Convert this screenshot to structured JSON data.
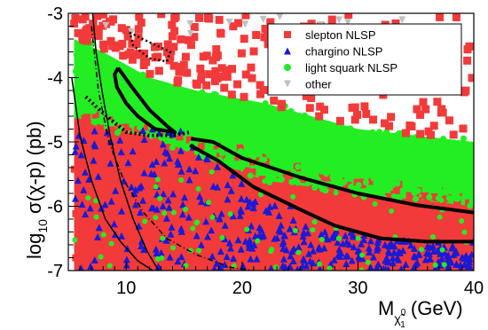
{
  "chart_data": {
    "type": "scatter",
    "title": "",
    "ylabel": {
      "prefix": "log",
      "subscript": "10",
      "rest": " σ(χ-p) (pb)"
    },
    "xlabel": {
      "prefix": "M",
      "subscript_glyph": "χ̃",
      "subscript_sup": "0",
      "subscript_sub": "1",
      "suffix": " (GeV)"
    },
    "xlim": [
      5,
      40
    ],
    "ylim": [
      -7,
      -3
    ],
    "xticks": [
      {
        "value": 10,
        "label": "10"
      },
      {
        "value": 20,
        "label": "20"
      },
      {
        "value": 30,
        "label": "30"
      },
      {
        "value": 40,
        "label": "40"
      }
    ],
    "yticks": [
      {
        "value": -3,
        "label": "-3"
      },
      {
        "value": -4,
        "label": "-4"
      },
      {
        "value": -5,
        "label": "-5"
      },
      {
        "value": -6,
        "label": "-6"
      },
      {
        "value": -7,
        "label": "-7"
      }
    ],
    "legend_position": "top-right",
    "series": [
      {
        "name": "slepton NLSP",
        "marker": "square",
        "color": "#f23a3a"
      },
      {
        "name": "chargino NLSP",
        "marker": "triangle",
        "color": "#1a1ad6"
      },
      {
        "name": "light squark NLSP",
        "marker": "circle",
        "color": "#22ee22"
      },
      {
        "name": "other",
        "marker": "triangle-down",
        "color": "#bfbfbf"
      }
    ],
    "regions": [
      {
        "series": "slepton NLSP",
        "shape": "band",
        "upper": [
          [
            5.5,
            -4.2
          ],
          [
            8,
            -4.6
          ],
          [
            12,
            -4.8
          ],
          [
            16,
            -4.9
          ],
          [
            22,
            -5.2
          ],
          [
            30,
            -5.6
          ],
          [
            40,
            -5.8
          ]
        ],
        "lower": [
          [
            5.5,
            -7
          ],
          [
            40,
            -7
          ]
        ]
      },
      {
        "series": "light squark NLSP",
        "shape": "band",
        "upper": [
          [
            5.5,
            -3.4
          ],
          [
            8,
            -3.6
          ],
          [
            12,
            -4.0
          ],
          [
            16,
            -4.2
          ],
          [
            22,
            -4.4
          ],
          [
            30,
            -4.8
          ],
          [
            40,
            -5.0
          ]
        ],
        "lower": [
          [
            5.5,
            -4.6
          ],
          [
            8,
            -4.8
          ],
          [
            12,
            -4.9
          ],
          [
            16,
            -5.2
          ],
          [
            22,
            -5.6
          ],
          [
            30,
            -5.8
          ],
          [
            40,
            -6.0
          ]
        ]
      }
    ],
    "curves": [
      {
        "style": "solid",
        "width": 4,
        "points": [
          [
            9.3,
            -3.85
          ],
          [
            10.5,
            -4.15
          ],
          [
            12,
            -4.5
          ],
          [
            13.5,
            -4.75
          ],
          [
            14.2,
            -4.85
          ],
          [
            12.5,
            -4.8
          ],
          [
            11,
            -4.6
          ],
          [
            10,
            -4.4
          ],
          [
            9.2,
            -4.15
          ],
          [
            9.0,
            -3.95
          ],
          [
            9.3,
            -3.85
          ]
        ]
      },
      {
        "style": "solid",
        "width": 4,
        "points": [
          [
            15.6,
            -4.95
          ],
          [
            17.5,
            -5.0
          ],
          [
            20,
            -5.25
          ],
          [
            25,
            -5.55
          ],
          [
            30,
            -5.8
          ],
          [
            35,
            -5.98
          ],
          [
            40,
            -6.1
          ]
        ]
      },
      {
        "style": "solid",
        "width": 4,
        "points": [
          [
            15.5,
            -5.05
          ],
          [
            18,
            -5.3
          ],
          [
            21,
            -5.7
          ],
          [
            25,
            -6.05
          ],
          [
            28,
            -6.3
          ],
          [
            32,
            -6.5
          ],
          [
            36,
            -6.55
          ],
          [
            40,
            -6.55
          ]
        ]
      },
      {
        "style": "dotted",
        "width": 4,
        "points": [
          [
            6.5,
            -4.3
          ],
          [
            8,
            -4.55
          ],
          [
            10,
            -4.85
          ],
          [
            12,
            -4.9
          ],
          [
            14,
            -4.9
          ],
          [
            15.5,
            -4.85
          ]
        ]
      },
      {
        "style": "dotted",
        "width": 2.5,
        "points": [
          [
            10.3,
            -3.3
          ],
          [
            12,
            -3.45
          ],
          [
            13.8,
            -3.6
          ],
          [
            13.5,
            -3.75
          ],
          [
            12,
            -3.7
          ],
          [
            10.6,
            -3.5
          ],
          [
            10.3,
            -3.3
          ]
        ]
      },
      {
        "style": "dashdot",
        "width": 1.5,
        "points": [
          [
            7,
            -3.2
          ],
          [
            7.6,
            -4.2
          ],
          [
            8.5,
            -5.0
          ],
          [
            9.8,
            -5.6
          ],
          [
            11.5,
            -6.1
          ],
          [
            13.5,
            -6.5
          ],
          [
            16,
            -6.75
          ],
          [
            19,
            -6.95
          ],
          [
            21,
            -7.0
          ]
        ]
      },
      {
        "style": "solid",
        "width": 1.5,
        "points": [
          [
            5.3,
            -4.0
          ],
          [
            6,
            -4.9
          ],
          [
            7,
            -5.6
          ],
          [
            8.2,
            -6.2
          ],
          [
            9.5,
            -6.55
          ],
          [
            11,
            -6.85
          ],
          [
            12.3,
            -7.0
          ]
        ]
      },
      {
        "style": "solid",
        "width": 1.5,
        "points": [
          [
            7.1,
            -3.0
          ],
          [
            7.4,
            -3.6
          ],
          [
            7.9,
            -4.2
          ],
          [
            8.6,
            -4.9
          ],
          [
            9.5,
            -5.6
          ],
          [
            10.6,
            -6.2
          ],
          [
            11.8,
            -6.7
          ],
          [
            12.8,
            -7.0
          ]
        ]
      }
    ]
  }
}
